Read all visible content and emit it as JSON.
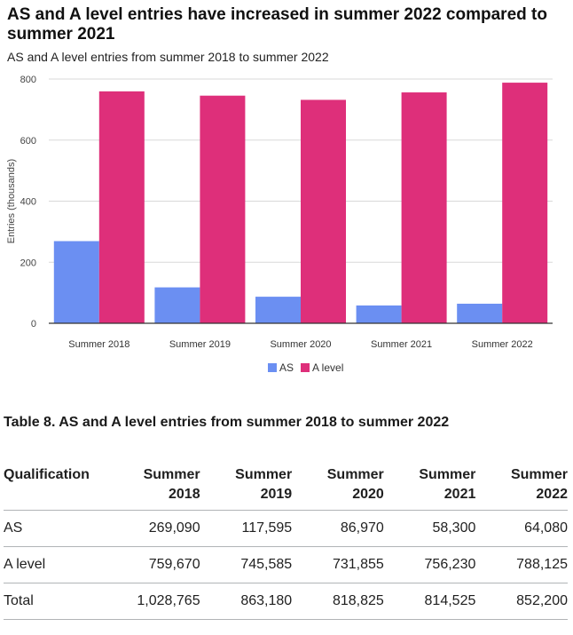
{
  "chart_data": {
    "type": "bar",
    "title": "AS and A level entries have increased in summer 2022 compared to summer 2021",
    "subtitle": "AS and A level entries from summer 2018 to summer 2022",
    "xlabel": "",
    "ylabel": "Entries (thousands)",
    "ylim": [
      0,
      800
    ],
    "yticks": [
      0,
      200,
      400,
      600,
      800
    ],
    "grid": true,
    "legend_position": "bottom",
    "categories": [
      "Summer 2018",
      "Summer 2019",
      "Summer 2020",
      "Summer 2021",
      "Summer 2022"
    ],
    "series": [
      {
        "name": "AS",
        "color": "#6b8ff2",
        "values": [
          269.09,
          117.595,
          86.97,
          58.3,
          64.08
        ]
      },
      {
        "name": "A level",
        "color": "#de2f7a",
        "values": [
          759.67,
          745.585,
          731.855,
          756.23,
          788.125
        ]
      }
    ]
  },
  "table": {
    "title": "Table 8. AS and A level entries from summer 2018 to summer 2022",
    "headers": [
      "Qualification",
      "Summer 2018",
      "Summer 2019",
      "Summer 2020",
      "Summer 2021",
      "Summer 2022"
    ],
    "rows": [
      [
        "AS",
        "269,090",
        "117,595",
        "86,970",
        "58,300",
        "64,080"
      ],
      [
        "A level",
        "759,670",
        "745,585",
        "731,855",
        "756,230",
        "788,125"
      ],
      [
        "Total",
        "1,028,765",
        "863,180",
        "818,825",
        "814,525",
        "852,200"
      ]
    ]
  }
}
